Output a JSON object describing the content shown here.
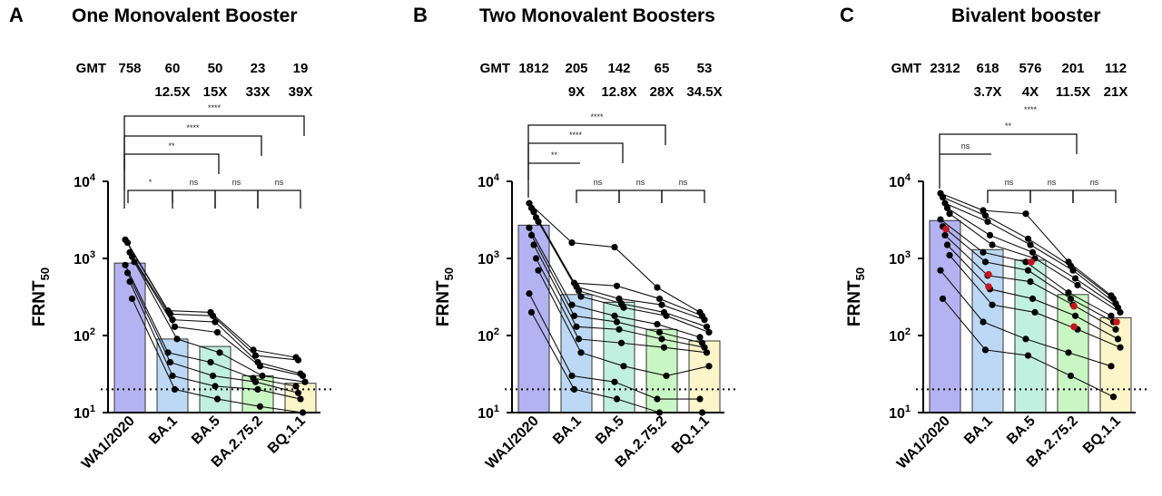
{
  "figure": {
    "ylabel": "FRNT",
    "ylabel_sub": "50",
    "gmt_label": "GMT",
    "categories": [
      "WA1/2020",
      "BA.1",
      "BA.5",
      "BA.2.75.2",
      "BQ.1.1"
    ],
    "y_ticks": [
      {
        "value": 10,
        "base": "10",
        "exp": "1"
      },
      {
        "value": 100,
        "base": "10",
        "exp": "2"
      },
      {
        "value": 1000,
        "base": "10",
        "exp": "3"
      },
      {
        "value": 10000,
        "base": "10",
        "exp": "4"
      }
    ]
  },
  "chart_data": [
    {
      "panel": "A",
      "title": "One Monovalent Booster",
      "type": "bar",
      "yscale": "log",
      "ylim": [
        10,
        10000
      ],
      "limit_of_detection": 20,
      "categories": [
        "WA1/2020",
        "BA.1",
        "BA.5",
        "BA.2.75.2",
        "BQ.1.1"
      ],
      "bar_colors": [
        "#b3b3f2",
        "#bcd8f5",
        "#c2f0e0",
        "#c9f7c3",
        "#fbf5c9"
      ],
      "gmt": [
        "758",
        "60",
        "50",
        "23",
        "19"
      ],
      "fold": [
        "",
        "12.5X",
        "15X",
        "33X",
        "39X"
      ],
      "values": [
        870,
        90,
        72,
        30,
        24
      ],
      "individual_series": [
        [
          1750,
          210,
          200,
          65,
          52
        ],
        [
          1600,
          190,
          180,
          55,
          48
        ],
        [
          1200,
          160,
          150,
          45,
          32
        ],
        [
          1050,
          130,
          110,
          40,
          30
        ],
        [
          900,
          90,
          60,
          30,
          25
        ],
        [
          820,
          60,
          45,
          28,
          22
        ],
        [
          650,
          45,
          30,
          25,
          18
        ],
        [
          500,
          30,
          22,
          20,
          15
        ],
        [
          300,
          20,
          15,
          12,
          10
        ]
      ],
      "significance": [
        {
          "from": 0,
          "to": 4,
          "label": "****",
          "level": 4
        },
        {
          "from": 0,
          "to": 3,
          "label": "****",
          "level": 3
        },
        {
          "from": 0,
          "to": 2,
          "label": "**",
          "level": 2
        },
        {
          "from": 0,
          "to": 1,
          "label": "*",
          "level": 1
        },
        {
          "from": 1,
          "to": 2,
          "label": "ns",
          "level": 1
        },
        {
          "from": 2,
          "to": 3,
          "label": "ns",
          "level": 1
        },
        {
          "from": 3,
          "to": 4,
          "label": "ns",
          "level": 1
        }
      ]
    },
    {
      "panel": "B",
      "title": "Two Monovalent  Boosters",
      "type": "bar",
      "yscale": "log",
      "ylim": [
        10,
        10000
      ],
      "limit_of_detection": 20,
      "categories": [
        "WA1/2020",
        "BA.1",
        "BA.5",
        "BA.2.75.2",
        "BQ.1.1"
      ],
      "bar_colors": [
        "#b3b3f2",
        "#bcd8f5",
        "#c2f0e0",
        "#c9f7c3",
        "#fbf5c9"
      ],
      "gmt": [
        "1812",
        "205",
        "142",
        "65",
        "53"
      ],
      "fold": [
        "",
        "9X",
        "12.8X",
        "28X",
        "34.5X"
      ],
      "values": [
        2700,
        340,
        270,
        120,
        85
      ],
      "individual_series": [
        [
          5200,
          1600,
          1400,
          420,
          200
        ],
        [
          4500,
          480,
          440,
          300,
          180
        ],
        [
          4000,
          430,
          300,
          250,
          160
        ],
        [
          3400,
          380,
          260,
          200,
          130
        ],
        [
          3000,
          320,
          230,
          180,
          110
        ],
        [
          2500,
          250,
          180,
          140,
          95
        ],
        [
          2000,
          180,
          150,
          110,
          80
        ],
        [
          1500,
          130,
          120,
          90,
          70
        ],
        [
          1000,
          90,
          80,
          70,
          60
        ],
        [
          700,
          60,
          40,
          30,
          40
        ],
        [
          350,
          30,
          25,
          15,
          15
        ],
        [
          200,
          20,
          15,
          10,
          10
        ]
      ],
      "significance": [
        {
          "from": 0,
          "to": 3,
          "label": "****",
          "level": 3
        },
        {
          "from": 0,
          "to": 2,
          "label": "****",
          "level": 2
        },
        {
          "from": 0,
          "to": 1,
          "label": "**",
          "level": 1
        },
        {
          "from": 1,
          "to": 2,
          "label": "ns",
          "level": 0
        },
        {
          "from": 2,
          "to": 3,
          "label": "ns",
          "level": 0
        },
        {
          "from": 3,
          "to": 4,
          "label": "ns",
          "level": 0
        }
      ]
    },
    {
      "panel": "C",
      "title": "Bivalent booster",
      "type": "bar",
      "yscale": "log",
      "ylim": [
        10,
        10000
      ],
      "limit_of_detection": 20,
      "categories": [
        "WA1/2020",
        "BA.1",
        "BA.5",
        "BA.2.75.2",
        "BQ.1.1"
      ],
      "bar_colors": [
        "#b3b3f2",
        "#bcd8f5",
        "#c2f0e0",
        "#c9f7c3",
        "#fbf5c9"
      ],
      "gmt": [
        "2312",
        "618",
        "576",
        "201",
        "112"
      ],
      "fold": [
        "",
        "3.7X",
        "4X",
        "11.5X",
        "21X"
      ],
      "values": [
        3100,
        1300,
        950,
        340,
        170
      ],
      "individual_series": [
        [
          7000,
          4200,
          3800,
          900,
          330
        ],
        [
          6200,
          3600,
          1800,
          800,
          300
        ],
        [
          5200,
          3000,
          1500,
          700,
          260
        ],
        [
          4500,
          2000,
          1200,
          550,
          230
        ],
        [
          3800,
          1500,
          1000,
          450,
          200
        ],
        [
          3200,
          1200,
          900,
          360,
          180
        ],
        [
          2600,
          900,
          700,
          300,
          150
        ],
        [
          2000,
          600,
          500,
          250,
          120
        ],
        [
          1500,
          400,
          300,
          180,
          90
        ],
        [
          1100,
          250,
          200,
          120,
          70
        ],
        [
          700,
          150,
          90,
          60,
          40
        ],
        [
          300,
          65,
          55,
          30,
          16
        ]
      ],
      "red_points": [
        {
          "category": 0,
          "value": 2400
        },
        {
          "category": 1,
          "value": 620
        },
        {
          "category": 1,
          "value": 430
        },
        {
          "category": 2,
          "value": 900
        },
        {
          "category": 3,
          "value": 240
        },
        {
          "category": 3,
          "value": 130
        },
        {
          "category": 4,
          "value": 150
        }
      ],
      "significance": [
        {
          "from": 0,
          "to": 3,
          "label": "**",
          "level": 3
        },
        {
          "from": 0,
          "to": 1,
          "label": "ns",
          "level": 1
        },
        {
          "from": 1,
          "to": 2,
          "label": "ns",
          "level": 0
        },
        {
          "from": 2,
          "to": 3,
          "label": "ns",
          "level": 0
        },
        {
          "from": 3,
          "to": 4,
          "label": "ns",
          "level": 0
        }
      ],
      "star_annotation": "****"
    }
  ]
}
